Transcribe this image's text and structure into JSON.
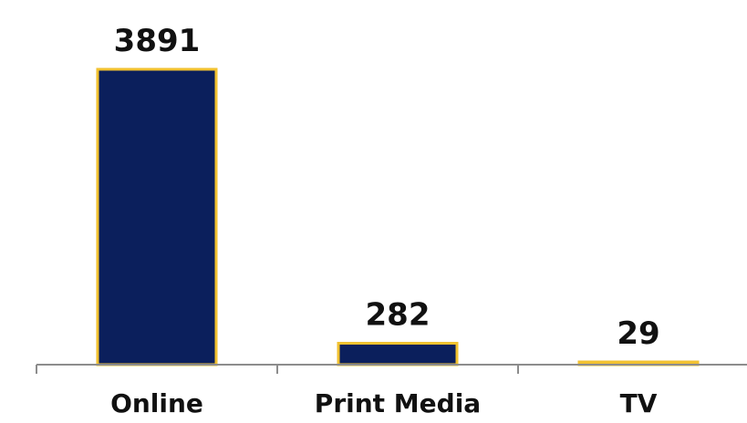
{
  "chart_data": {
    "type": "bar",
    "categories": [
      "Online",
      "Print Media",
      "TV"
    ],
    "values": [
      3891,
      282,
      29
    ],
    "value_labels": [
      "3891",
      "282",
      "29"
    ],
    "title": "",
    "xlabel": "",
    "ylabel": "",
    "ylim": [
      0,
      4200
    ],
    "grid": false,
    "legend": "none",
    "colors": {
      "bar_fill": "#0b1f5c",
      "bar_edge": "#f2c230",
      "axis": "#8c8c8c",
      "text": "#111111"
    }
  }
}
